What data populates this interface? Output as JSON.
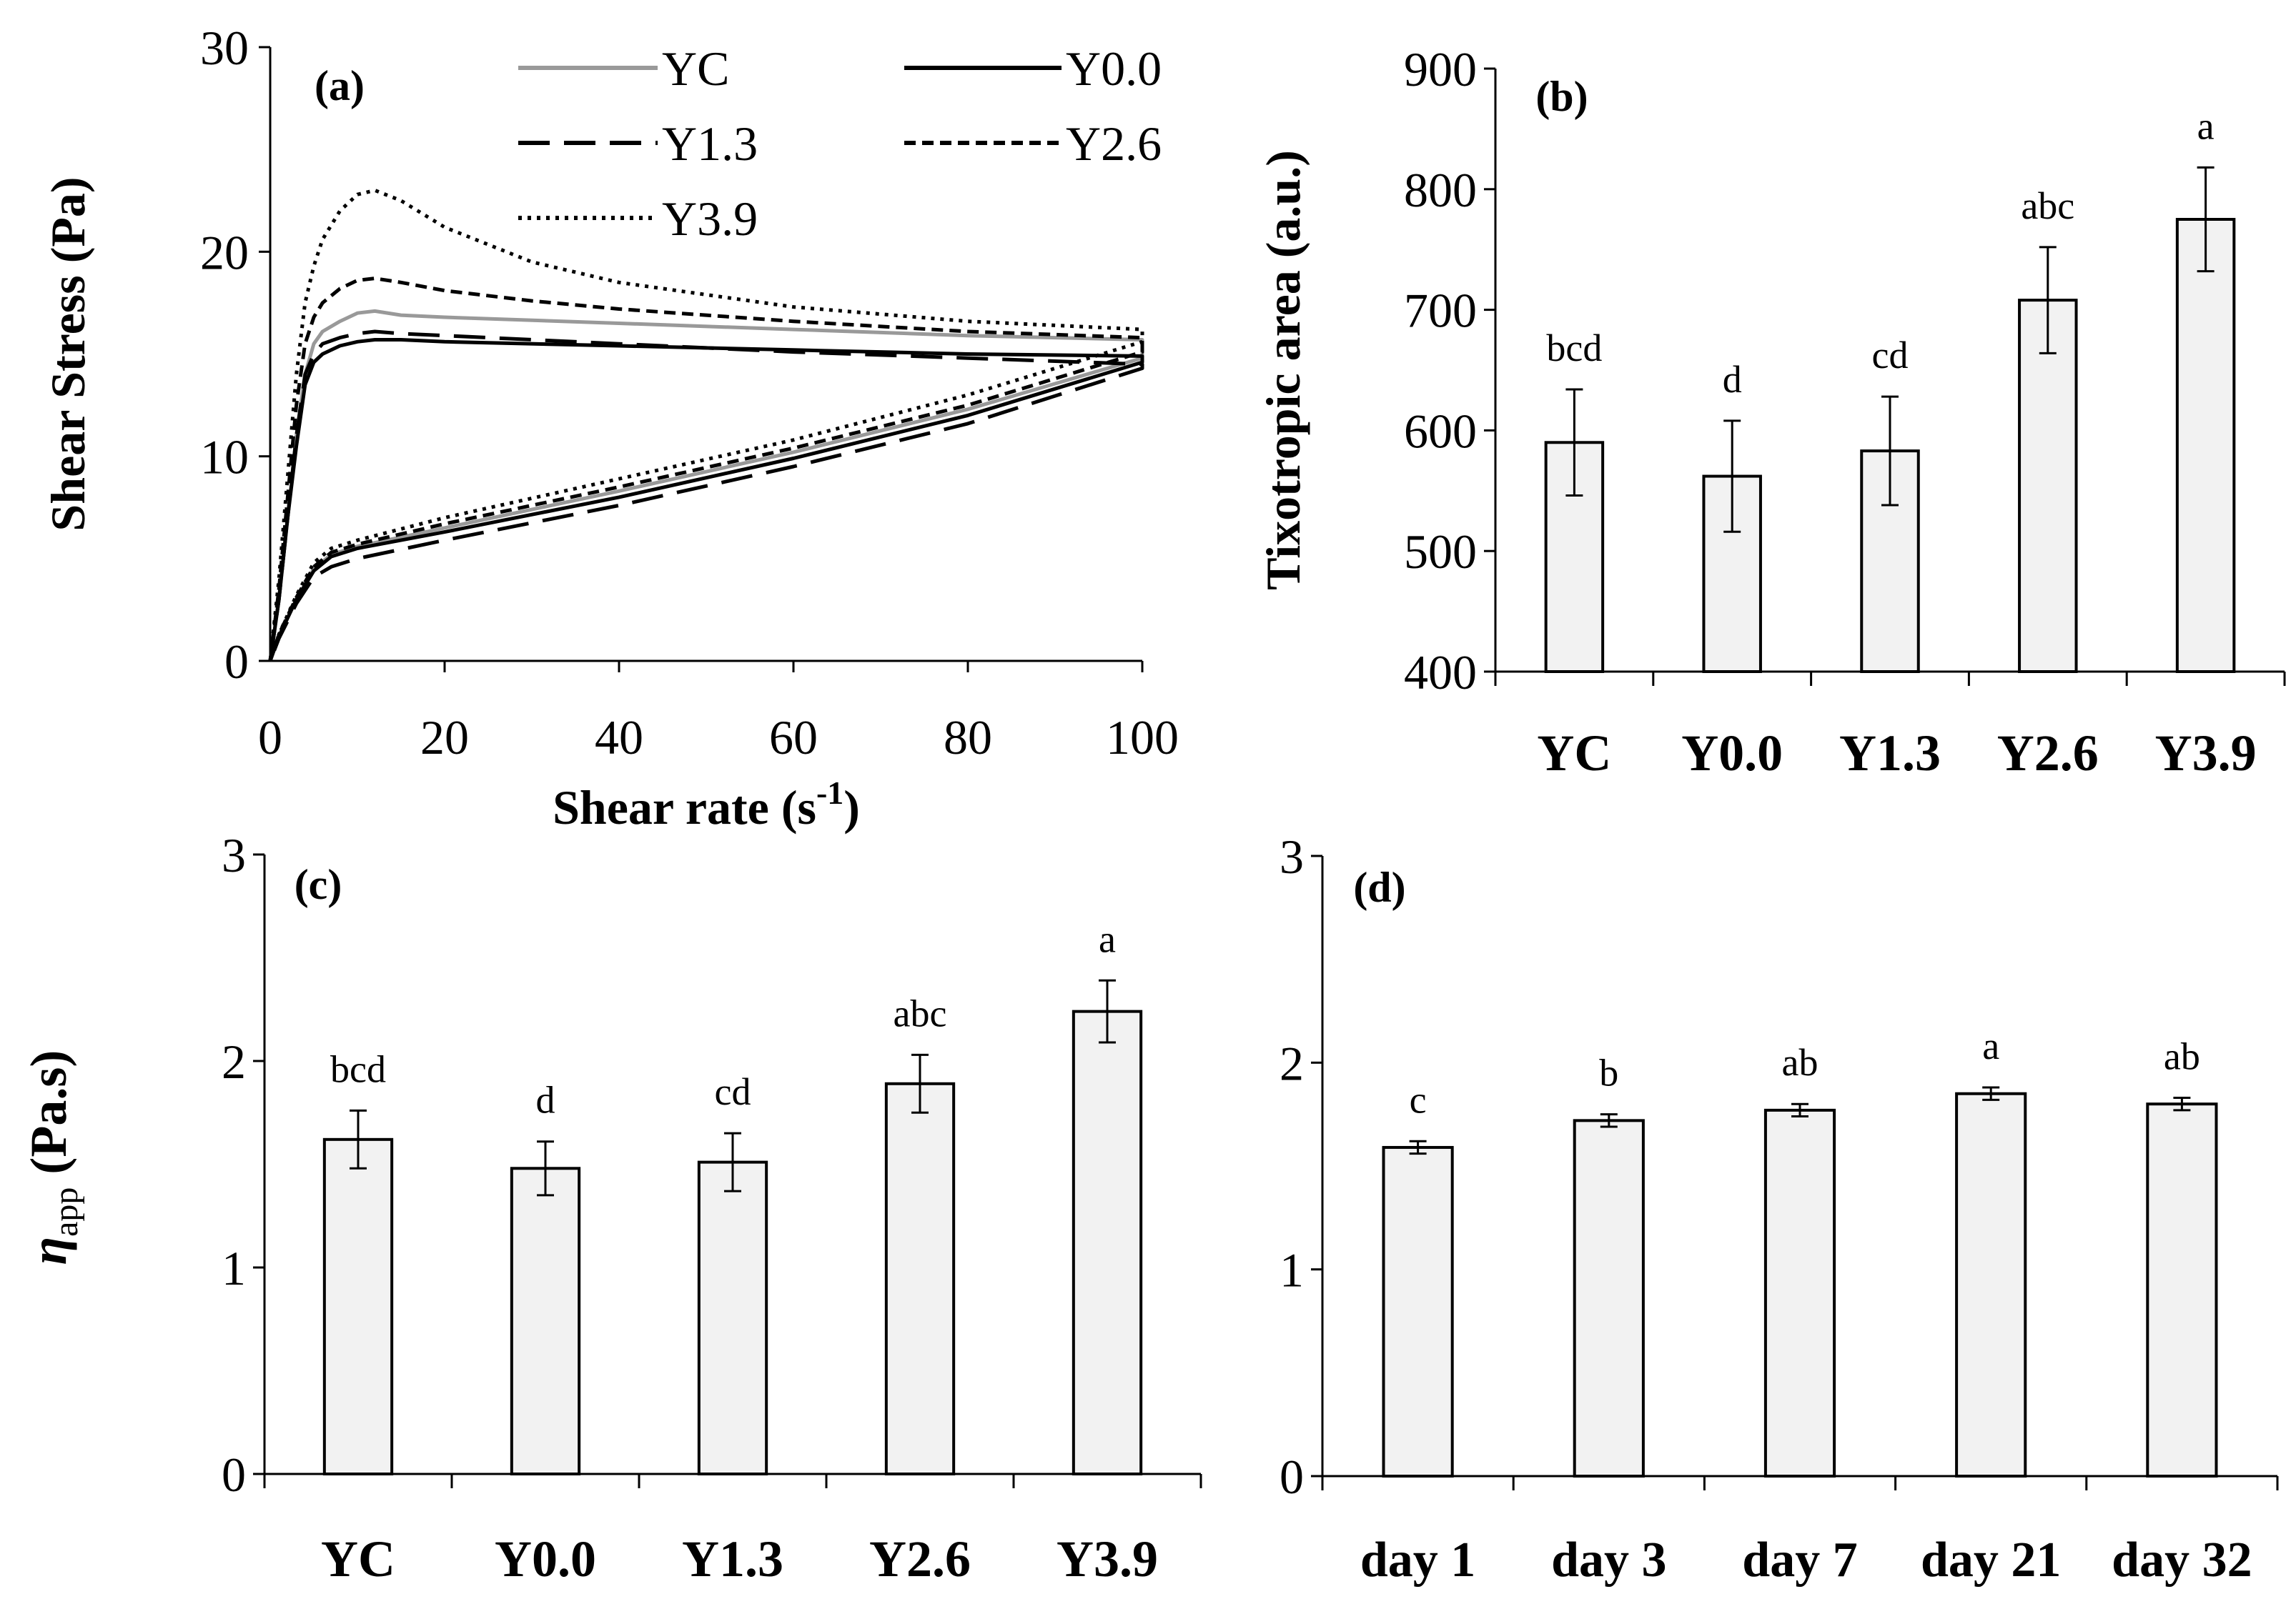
{
  "chart_data": [
    {
      "panel": "(a)",
      "type": "line",
      "xlabel": "Shear rate (s",
      "xlabel_sup": "-1",
      "xlabel_end": ")",
      "ylabel": "Shear Stress (Pa)",
      "xlim": [
        0,
        100
      ],
      "ylim": [
        0,
        30
      ],
      "xticks": [
        0,
        20,
        40,
        60,
        80,
        100
      ],
      "yticks": [
        0,
        10,
        20,
        30
      ],
      "legend_position": "top",
      "series": [
        {
          "name": "YC",
          "color": "#999999",
          "style": "solid",
          "up": [
            [
              0,
              0
            ],
            [
              1,
              3
            ],
            [
              2,
              7
            ],
            [
              3,
              11
            ],
            [
              4,
              14
            ],
            [
              5,
              15.5
            ],
            [
              6,
              16.1
            ],
            [
              8,
              16.6
            ],
            [
              10,
              17
            ],
            [
              12,
              17.1
            ],
            [
              15,
              16.9
            ],
            [
              20,
              16.8
            ],
            [
              40,
              16.5
            ],
            [
              60,
              16.2
            ],
            [
              80,
              15.9
            ],
            [
              100,
              15.7
            ]
          ],
          "down": [
            [
              100,
              14.8
            ],
            [
              80,
              12.3
            ],
            [
              60,
              10.2
            ],
            [
              40,
              8.3
            ],
            [
              20,
              6.5
            ],
            [
              10,
              5.6
            ],
            [
              7,
              5.2
            ],
            [
              5,
              4.5
            ],
            [
              3,
              3
            ],
            [
              1,
              1.2
            ],
            [
              0,
              0
            ]
          ]
        },
        {
          "name": "Y0.0",
          "color": "#000000",
          "style": "solid",
          "up": [
            [
              0,
              0
            ],
            [
              1,
              3
            ],
            [
              2,
              7
            ],
            [
              3,
              10.5
            ],
            [
              4,
              13.5
            ],
            [
              5,
              14.6
            ],
            [
              6,
              15
            ],
            [
              8,
              15.4
            ],
            [
              10,
              15.6
            ],
            [
              12,
              15.7
            ],
            [
              15,
              15.7
            ],
            [
              20,
              15.6
            ],
            [
              40,
              15.4
            ],
            [
              60,
              15.2
            ],
            [
              80,
              15
            ],
            [
              100,
              14.9
            ]
          ],
          "down": [
            [
              100,
              14.6
            ],
            [
              80,
              12
            ],
            [
              60,
              9.9
            ],
            [
              40,
              8
            ],
            [
              20,
              6.3
            ],
            [
              10,
              5.5
            ],
            [
              7,
              5.1
            ],
            [
              5,
              4.4
            ],
            [
              3,
              3
            ],
            [
              1,
              1.2
            ],
            [
              0,
              0
            ]
          ]
        },
        {
          "name": "Y1.3",
          "color": "#000000",
          "style": "longdash",
          "up": [
            [
              0,
              0
            ],
            [
              1,
              3
            ],
            [
              2,
              7
            ],
            [
              3,
              11
            ],
            [
              4,
              14
            ],
            [
              5,
              15
            ],
            [
              6,
              15.5
            ],
            [
              8,
              15.8
            ],
            [
              10,
              16
            ],
            [
              12,
              16.1
            ],
            [
              15,
              16
            ],
            [
              20,
              15.9
            ],
            [
              40,
              15.5
            ],
            [
              60,
              15.1
            ],
            [
              80,
              14.8
            ],
            [
              100,
              14.5
            ]
          ],
          "down": [
            [
              100,
              14.3
            ],
            [
              80,
              11.6
            ],
            [
              60,
              9.5
            ],
            [
              40,
              7.6
            ],
            [
              20,
              5.9
            ],
            [
              10,
              5
            ],
            [
              7,
              4.6
            ],
            [
              5,
              4.1
            ],
            [
              3,
              2.8
            ],
            [
              1,
              1.1
            ],
            [
              0,
              0
            ]
          ]
        },
        {
          "name": "Y2.6",
          "color": "#000000",
          "style": "shortdash",
          "up": [
            [
              0,
              0
            ],
            [
              1,
              3.5
            ],
            [
              2,
              8
            ],
            [
              3,
              12.5
            ],
            [
              4,
              15.5
            ],
            [
              5,
              16.8
            ],
            [
              6,
              17.5
            ],
            [
              8,
              18.2
            ],
            [
              10,
              18.6
            ],
            [
              12,
              18.7
            ],
            [
              15,
              18.5
            ],
            [
              20,
              18.1
            ],
            [
              30,
              17.6
            ],
            [
              40,
              17.2
            ],
            [
              60,
              16.6
            ],
            [
              80,
              16.1
            ],
            [
              100,
              15.8
            ]
          ],
          "down": [
            [
              100,
              15.1
            ],
            [
              80,
              12.5
            ],
            [
              60,
              10.4
            ],
            [
              40,
              8.5
            ],
            [
              20,
              6.7
            ],
            [
              10,
              5.7
            ],
            [
              7,
              5.3
            ],
            [
              5,
              4.6
            ],
            [
              3,
              3.1
            ],
            [
              1,
              1.3
            ],
            [
              0,
              0
            ]
          ]
        },
        {
          "name": "Y3.9",
          "color": "#000000",
          "style": "dotted",
          "up": [
            [
              0,
              0
            ],
            [
              1,
              4
            ],
            [
              2,
              9
            ],
            [
              3,
              14
            ],
            [
              4,
              17.5
            ],
            [
              5,
              19.3
            ],
            [
              6,
              20.6
            ],
            [
              8,
              22
            ],
            [
              10,
              22.8
            ],
            [
              12,
              23
            ],
            [
              15,
              22.5
            ],
            [
              20,
              21.2
            ],
            [
              30,
              19.5
            ],
            [
              40,
              18.5
            ],
            [
              60,
              17.3
            ],
            [
              80,
              16.6
            ],
            [
              100,
              16.2
            ]
          ],
          "down": [
            [
              100,
              15.6
            ],
            [
              80,
              13
            ],
            [
              60,
              10.8
            ],
            [
              40,
              8.9
            ],
            [
              20,
              7
            ],
            [
              10,
              5.9
            ],
            [
              7,
              5.5
            ],
            [
              5,
              4.8
            ],
            [
              3,
              3.2
            ],
            [
              1,
              1.3
            ],
            [
              0,
              0
            ]
          ]
        }
      ]
    },
    {
      "panel": "(b)",
      "type": "bar",
      "ylabel": "Tixotropic area (a.u.)",
      "ylim": [
        400,
        900
      ],
      "yticks": [
        400,
        500,
        600,
        700,
        800,
        900
      ],
      "categories": [
        "YC",
        "Y0.0",
        "Y1.3",
        "Y2.6",
        "Y3.9"
      ],
      "values": [
        590,
        562,
        583,
        708,
        775
      ],
      "errors": [
        44,
        46,
        45,
        44,
        43
      ],
      "letters": [
        "bcd",
        "d",
        "cd",
        "abc",
        "a"
      ]
    },
    {
      "panel": "(c)",
      "type": "bar",
      "ylabel": "η",
      "ylabel_sub": "app",
      "ylabel_unit": "(Pa.s)",
      "ylim": [
        0,
        3
      ],
      "yticks": [
        0,
        1,
        2,
        3
      ],
      "categories": [
        "YC",
        "Y0.0",
        "Y1.3",
        "Y2.6",
        "Y3.9"
      ],
      "values": [
        1.62,
        1.48,
        1.51,
        1.89,
        2.24
      ],
      "errors": [
        0.14,
        0.13,
        0.14,
        0.14,
        0.15
      ],
      "letters": [
        "bcd",
        "d",
        "cd",
        "abc",
        "a"
      ]
    },
    {
      "panel": "(d)",
      "type": "bar",
      "ylabel": "",
      "ylim": [
        0,
        3
      ],
      "yticks": [
        0,
        1,
        2,
        3
      ],
      "categories": [
        "day 1",
        "day 3",
        "day 7",
        "day 21",
        "day 32"
      ],
      "values": [
        1.59,
        1.72,
        1.77,
        1.85,
        1.8
      ],
      "errors": [
        0.03,
        0.03,
        0.03,
        0.03,
        0.03
      ],
      "letters": [
        "c",
        "b",
        "ab",
        "a",
        "ab"
      ]
    }
  ]
}
